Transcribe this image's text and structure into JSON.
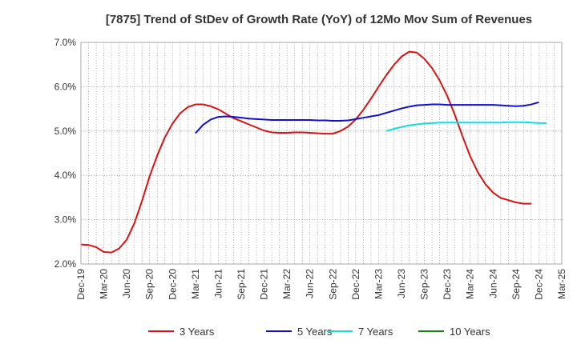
{
  "chart_data": {
    "type": "line",
    "title": "[7875]  Trend of StDev of Growth Rate (YoY) of 12Mo Mov Sum of Revenues",
    "xlabel": "",
    "ylabel": "",
    "ylim": [
      2.0,
      7.0
    ],
    "y_ticks": [
      2.0,
      3.0,
      4.0,
      5.0,
      6.0,
      7.0
    ],
    "y_tick_labels": [
      "2.0%",
      "3.0%",
      "4.0%",
      "5.0%",
      "6.0%",
      "7.0%"
    ],
    "x_tick_labels": [
      "Dec-19",
      "Mar-20",
      "Jun-20",
      "Sep-20",
      "Dec-20",
      "Mar-21",
      "Jun-21",
      "Sep-21",
      "Dec-21",
      "Mar-22",
      "Jun-22",
      "Sep-22",
      "Dec-22",
      "Mar-23",
      "Jun-23",
      "Sep-23",
      "Dec-23",
      "Mar-24",
      "Jun-24",
      "Sep-24",
      "Dec-24",
      "Mar-25"
    ],
    "months_total": 63,
    "grid": true,
    "legend_position": "bottom",
    "series": [
      {
        "name": "3 Years",
        "color": "#dd1111",
        "start_month": 0,
        "values": [
          2.44,
          2.43,
          2.38,
          2.27,
          2.26,
          2.35,
          2.55,
          2.92,
          3.42,
          3.98,
          4.45,
          4.86,
          5.17,
          5.4,
          5.54,
          5.6,
          5.6,
          5.56,
          5.49,
          5.39,
          5.29,
          5.22,
          5.15,
          5.08,
          5.01,
          4.97,
          4.96,
          4.96,
          4.97,
          4.97,
          4.96,
          4.95,
          4.94,
          4.94,
          5.0,
          5.1,
          5.26,
          5.48,
          5.73,
          6.0,
          6.26,
          6.49,
          6.68,
          6.79,
          6.77,
          6.63,
          6.42,
          6.14,
          5.79,
          5.36,
          4.88,
          4.43,
          4.07,
          3.8,
          3.61,
          3.49,
          3.44,
          3.39,
          3.36,
          3.36
        ]
      },
      {
        "name": "5 Years",
        "color": "#1111cc",
        "start_month": 15,
        "values": [
          4.95,
          5.14,
          5.26,
          5.32,
          5.33,
          5.32,
          5.3,
          5.28,
          5.27,
          5.26,
          5.25,
          5.25,
          5.25,
          5.25,
          5.25,
          5.25,
          5.24,
          5.24,
          5.23,
          5.23,
          5.24,
          5.27,
          5.3,
          5.33,
          5.36,
          5.41,
          5.46,
          5.51,
          5.55,
          5.58,
          5.59,
          5.6,
          5.6,
          5.59,
          5.59,
          5.59,
          5.59,
          5.59,
          5.59,
          5.59,
          5.58,
          5.57,
          5.56,
          5.57,
          5.6,
          5.65
        ]
      },
      {
        "name": "7 Years",
        "color": "#11dddd",
        "start_month": 40,
        "values": [
          5.0,
          5.05,
          5.09,
          5.13,
          5.15,
          5.17,
          5.18,
          5.19,
          5.19,
          5.19,
          5.19,
          5.19,
          5.19,
          5.19,
          5.19,
          5.19,
          5.2,
          5.2,
          5.2,
          5.19,
          5.18,
          5.18
        ]
      },
      {
        "name": "10 Years",
        "color": "#118811",
        "start_month": 0,
        "values": []
      }
    ]
  }
}
